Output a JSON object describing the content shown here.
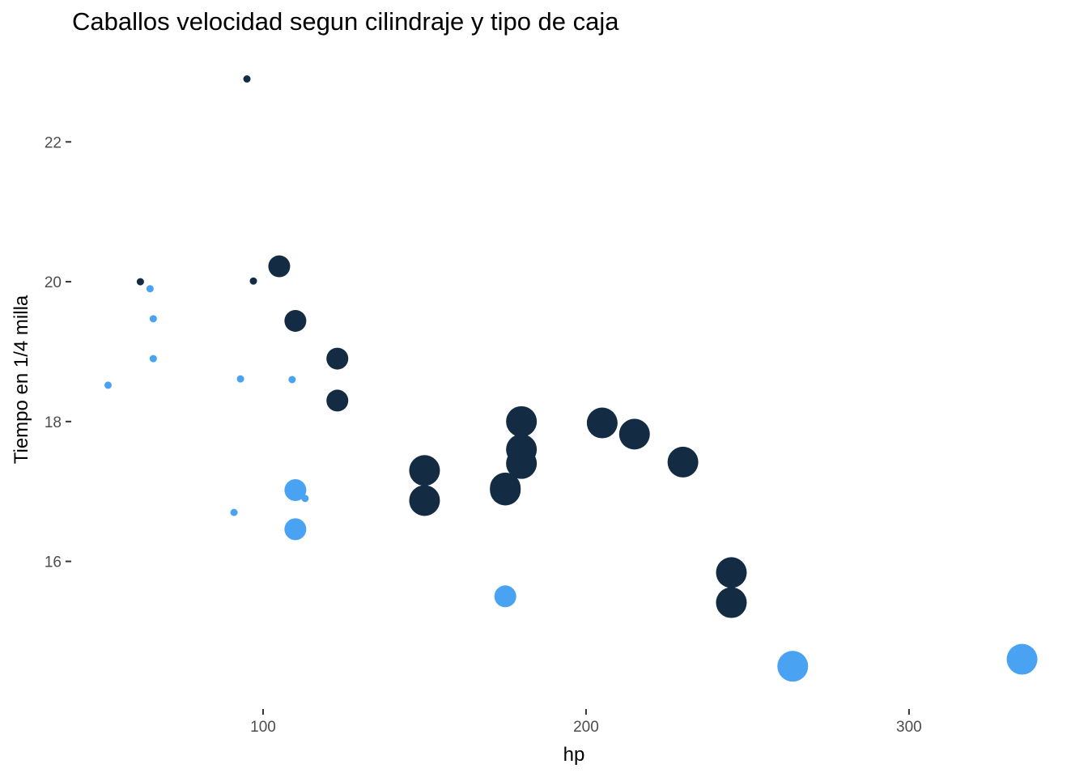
{
  "chart_data": {
    "type": "scatter",
    "title": "Caballos velocidad segun cilindraje y tipo de caja",
    "xlabel": "hp",
    "ylabel": "Tiempo en 1/4 milla",
    "xlim": [
      40.85,
      346.15
    ],
    "ylim": [
      13.9,
      23.3
    ],
    "xticks": [
      100,
      200,
      300
    ],
    "yticks": [
      16,
      18,
      20,
      22
    ],
    "grid": false,
    "legend": "none",
    "size_encoding": "cyl",
    "color_encoding": "am",
    "colors": {
      "dark": "#132B43",
      "light": "#56B1F7"
    },
    "points": [
      {
        "hp": 110,
        "qsec": 16.46,
        "cyl": 6,
        "am": 1
      },
      {
        "hp": 110,
        "qsec": 17.02,
        "cyl": 6,
        "am": 1
      },
      {
        "hp": 93,
        "qsec": 18.61,
        "cyl": 4,
        "am": 1
      },
      {
        "hp": 110,
        "qsec": 19.44,
        "cyl": 6,
        "am": 0
      },
      {
        "hp": 175,
        "qsec": 17.02,
        "cyl": 8,
        "am": 0
      },
      {
        "hp": 105,
        "qsec": 20.22,
        "cyl": 6,
        "am": 0
      },
      {
        "hp": 245,
        "qsec": 15.84,
        "cyl": 8,
        "am": 0
      },
      {
        "hp": 62,
        "qsec": 20.0,
        "cyl": 4,
        "am": 0
      },
      {
        "hp": 95,
        "qsec": 22.9,
        "cyl": 4,
        "am": 0
      },
      {
        "hp": 123,
        "qsec": 18.3,
        "cyl": 6,
        "am": 0
      },
      {
        "hp": 123,
        "qsec": 18.9,
        "cyl": 6,
        "am": 0
      },
      {
        "hp": 180,
        "qsec": 17.4,
        "cyl": 8,
        "am": 0
      },
      {
        "hp": 180,
        "qsec": 17.6,
        "cyl": 8,
        "am": 0
      },
      {
        "hp": 180,
        "qsec": 18.0,
        "cyl": 8,
        "am": 0
      },
      {
        "hp": 205,
        "qsec": 17.98,
        "cyl": 8,
        "am": 0
      },
      {
        "hp": 215,
        "qsec": 17.82,
        "cyl": 8,
        "am": 0
      },
      {
        "hp": 230,
        "qsec": 17.42,
        "cyl": 8,
        "am": 0
      },
      {
        "hp": 66,
        "qsec": 19.47,
        "cyl": 4,
        "am": 1
      },
      {
        "hp": 52,
        "qsec": 18.52,
        "cyl": 4,
        "am": 1
      },
      {
        "hp": 65,
        "qsec": 19.9,
        "cyl": 4,
        "am": 1
      },
      {
        "hp": 97,
        "qsec": 20.01,
        "cyl": 4,
        "am": 0
      },
      {
        "hp": 150,
        "qsec": 16.87,
        "cyl": 8,
        "am": 0
      },
      {
        "hp": 150,
        "qsec": 17.3,
        "cyl": 8,
        "am": 0
      },
      {
        "hp": 245,
        "qsec": 15.41,
        "cyl": 8,
        "am": 0
      },
      {
        "hp": 175,
        "qsec": 17.05,
        "cyl": 8,
        "am": 0
      },
      {
        "hp": 66,
        "qsec": 18.9,
        "cyl": 4,
        "am": 1
      },
      {
        "hp": 91,
        "qsec": 16.7,
        "cyl": 4,
        "am": 1
      },
      {
        "hp": 113,
        "qsec": 16.9,
        "cyl": 4,
        "am": 1
      },
      {
        "hp": 264,
        "qsec": 14.5,
        "cyl": 8,
        "am": 1
      },
      {
        "hp": 175,
        "qsec": 15.5,
        "cyl": 6,
        "am": 1
      },
      {
        "hp": 335,
        "qsec": 14.6,
        "cyl": 8,
        "am": 1
      },
      {
        "hp": 109,
        "qsec": 18.6,
        "cyl": 4,
        "am": 1
      }
    ]
  }
}
